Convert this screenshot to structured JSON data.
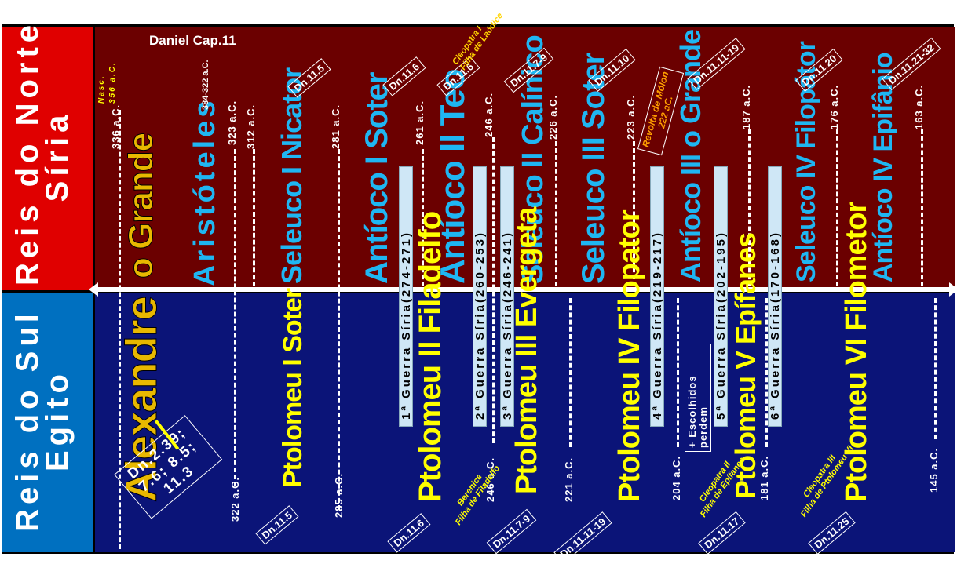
{
  "title": "Daniel Cap.11",
  "north": {
    "line1": "Reis do Norte",
    "line2": "Síria"
  },
  "south": {
    "line1": "Reis do Sul",
    "line2": "Egito"
  },
  "alexander": {
    "name1": "Alexandre",
    "name2": "o Grande",
    "ref": "Dn.2.39; 7.6; 8.5; 11.3",
    "birth": "Nasc. 356 a.C."
  },
  "north_kings": {
    "aristoteles": "Aristóteles",
    "aristoteles_years": "384-322 a.C.",
    "seleuco1": "Seleuco I Nicator",
    "antioco1": "Antíoco I Soter",
    "antioco2": "Antíoco II Teo",
    "seleuco2": "Seleuco II Calínico",
    "seleuco3": "Seleuco III Soter",
    "antioco3": "Antíoco III o Grande",
    "seleuco4": "Seleuco IV Filopátor",
    "antioco4": "Antíoco IV Epifânio"
  },
  "south_kings": {
    "ptolomeu1": "Ptolomeu I Soter",
    "ptolomeu2": "Ptolomeu II Filadelfo",
    "ptolomeu3": "Ptolomeu III Evergeta",
    "ptolomeu4": "Ptolomeu IV Filopator",
    "ptolomeu5": "Ptolomeu V Epífanes",
    "ptolomeu6": "Ptolomeu VI Filometor"
  },
  "north_dates": {
    "d336": "336 a.C.",
    "d323": "323 a.C.",
    "d312": "312 a.C.",
    "d281": "281 a.C.",
    "d261": "261 a.C.",
    "d246": "246 a.C.",
    "d226": "226 a.C.",
    "d223": "223 a.C.",
    "d187": "187 a.C.",
    "d176": "176 a.C.",
    "d163": "163 a.C."
  },
  "south_dates": {
    "d322": "322 a.C.",
    "d285": "285 a.C.",
    "d246": "246 a.C.",
    "d221": "221 a.C.",
    "d204": "204 a.C.",
    "d181": "181 a.C.",
    "d145": "145 a.C."
  },
  "north_refs": {
    "r1": "Dn.11.5",
    "r2": "Dn.11.6",
    "r3": "Dn.11.6",
    "r4": "Dn.11.7-9",
    "r5": "Dn.11.10",
    "r6": "Dn.11.11-19",
    "r7": "Dn.11.20",
    "r8": "Dn.11.21-32"
  },
  "south_refs": {
    "r1": "Dn.11.5",
    "r2": "Dn.11.6",
    "r3": "Dn.11.7-9",
    "r4": "Dn.11.11-19",
    "r5": "Dn.11.17",
    "r6": "Dn.11.25"
  },
  "wars": {
    "w1": "1ª Guerra Síria(274-271)",
    "w2": "2ª Guerra Síria(260-253)",
    "w3": "3ª Guerra Síria(246-241)",
    "w4": "4ª Guerra Síria(219-217)",
    "w5": "5ª Guerra Síria(202-195)",
    "w6": "6ª Guerra Síria(170-168)"
  },
  "notes": {
    "cleopatra1_a": "Cleopatra I",
    "cleopatra1_b": "Filha de Laódice",
    "revolta_a": "Revolta de Mólon",
    "revolta_b": "222 aC.",
    "berenice_a": "Berenice",
    "berenice_b": "Filha de Filadelfo",
    "cleopatra2_a": "Cleopatra II",
    "cleopatra2_b": "Filha de Epífanes",
    "cleopatra3_a": "Cleopatra III",
    "cleopatra3_b": "Filha de Ptolomeu VI",
    "escolhidos_a": "+ Escolhidos",
    "escolhidos_b": "perdem"
  },
  "colors": {
    "north_band": "#6b0000",
    "south_band": "#0b1478",
    "north_label": "#e00000",
    "south_label": "#0070c0",
    "name_cyan": "#1fb6f2",
    "name_yellow": "#ffff00"
  }
}
